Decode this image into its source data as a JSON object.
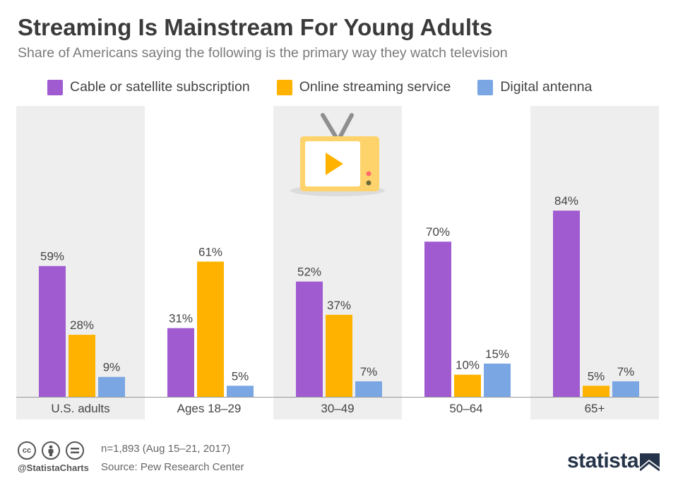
{
  "title": "Streaming Is Mainstream For Young Adults",
  "subtitle": "Share of Americans saying the following is the primary way they watch television",
  "footer": {
    "note": "n=1,893 (Aug 15–21, 2017)",
    "source": "Source: Pew Research Center",
    "handle": "@StatistaCharts",
    "brand": "statista",
    "license_icons": [
      "cc-icon",
      "attribution-icon",
      "no-derivatives-icon"
    ]
  },
  "colors": {
    "cable": "#a15bd1",
    "streaming": "#ffb300",
    "antenna": "#7aa7e3",
    "band": "#eeeeee"
  },
  "chart_data": {
    "type": "bar",
    "categories": [
      "U.S. adults",
      "Ages 18–29",
      "30–49",
      "50–64",
      "65+"
    ],
    "series": [
      {
        "name": "Cable or satellite subscription",
        "values": [
          59,
          31,
          52,
          70,
          84
        ],
        "labels": [
          "59%",
          "31%",
          "52%",
          "70%",
          "84%"
        ]
      },
      {
        "name": "Online streaming service",
        "values": [
          28,
          61,
          37,
          10,
          5
        ],
        "labels": [
          "28%",
          "61%",
          "37%",
          "10%",
          "5%"
        ]
      },
      {
        "name": "Digital antenna",
        "values": [
          9,
          5,
          7,
          15,
          7
        ],
        "labels": [
          "9%",
          "5%",
          "7%",
          "15%",
          "7%"
        ]
      }
    ],
    "unit": "%",
    "ylim": [
      0,
      100
    ],
    "grid": false,
    "legend_position": "top",
    "decoration": "tv-icon"
  }
}
